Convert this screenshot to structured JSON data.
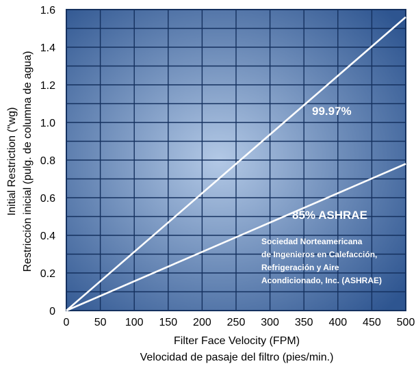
{
  "chart_data": {
    "type": "line",
    "xlabel": "Filter Face Velocity (FPM)",
    "xlabel_secondary": "Velocidad de pasaje del filtro (pies/min.)",
    "ylabel": "Initial Restriction  (\"wg)",
    "ylabel_secondary": "Restricción inicial (pulg. de columna de agua)",
    "xlim": [
      0,
      500
    ],
    "ylim": [
      0,
      1.6
    ],
    "x_ticks": [
      "0",
      "50",
      "100",
      "150",
      "200",
      "250",
      "300",
      "350",
      "400",
      "450",
      "500"
    ],
    "y_ticks": [
      "0",
      "0.2",
      "0.4",
      "0.6",
      "0.8",
      "1.0",
      "1.2",
      "1.4",
      "1.6"
    ],
    "grid": true,
    "series": [
      {
        "name": "99.97%",
        "x": [
          0,
          500
        ],
        "y": [
          0,
          1.56
        ]
      },
      {
        "name": "85% ASHRAE",
        "x": [
          0,
          500
        ],
        "y": [
          0,
          0.78
        ]
      }
    ],
    "annotation": [
      "Sociedad Norteamericana",
      "de Ingenieros en Calefacción,",
      "Refrigeración y Aire",
      "Acondicionado, Inc. (ASHRAE)"
    ],
    "colors": {
      "plot_center": "#b3c9e6",
      "plot_edge": "#2e5590",
      "grid": "#14305e",
      "lines": "#ffffff"
    }
  }
}
